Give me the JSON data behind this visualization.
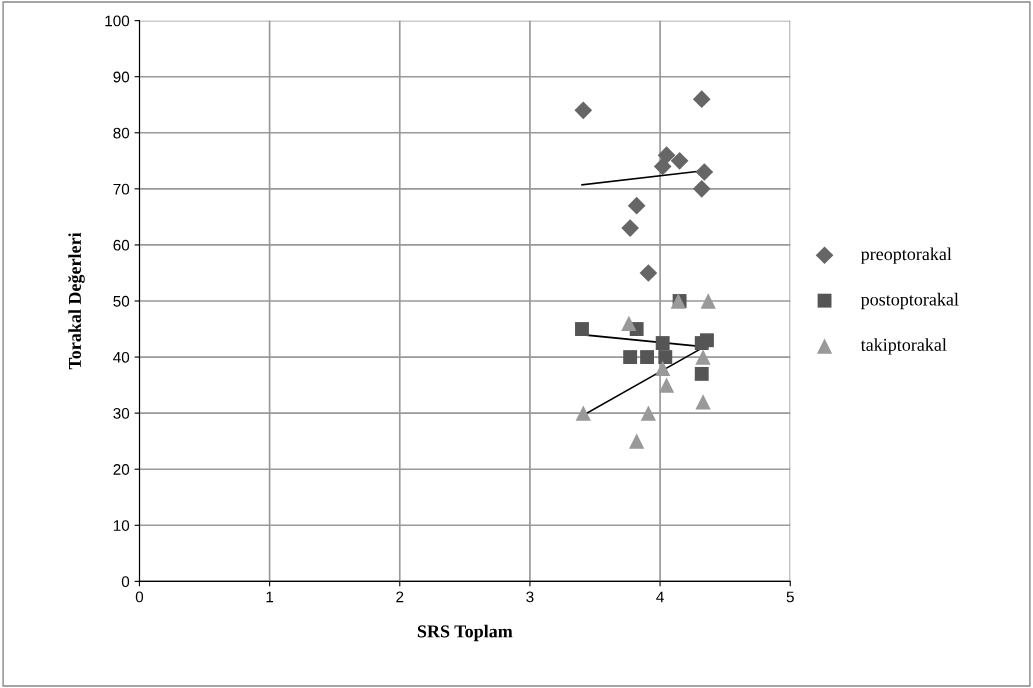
{
  "chart_data": {
    "type": "scatter",
    "xlabel": "SRS Toplam",
    "ylabel": "Torakal Değerleri",
    "xlim": [
      0,
      5
    ],
    "xticks": [
      0,
      1,
      2,
      3,
      4,
      5
    ],
    "ylim": [
      0,
      100
    ],
    "yticks": [
      0,
      10,
      20,
      30,
      40,
      50,
      60,
      70,
      80,
      90,
      100
    ],
    "grid": true,
    "legend": "right",
    "series": [
      {
        "name": "preoptorakal",
        "color": "#666666",
        "marker": "diamond",
        "x": [
          3.41,
          4.32,
          4.05,
          4.02,
          4.15,
          4.34,
          4.32,
          3.82,
          3.77,
          3.91
        ],
        "values": [
          84,
          86,
          76,
          74,
          75,
          73,
          70,
          67,
          63,
          55
        ]
      },
      {
        "name": "postoptorakal",
        "color": "#555555",
        "marker": "square",
        "x": [
          4.15,
          3.4,
          3.82,
          4.02,
          4.36,
          4.32,
          3.77,
          3.9,
          4.04,
          4.32
        ],
        "values": [
          50,
          45,
          45,
          42.5,
          43,
          42.5,
          40,
          40,
          40,
          37
        ]
      },
      {
        "name": "takiptorakal",
        "color": "#999999",
        "marker": "triangle",
        "x": [
          4.14,
          4.37,
          3.76,
          4.33,
          4.02,
          4.05,
          4.33,
          3.41,
          3.91,
          3.82
        ],
        "values": [
          50,
          50,
          46,
          40,
          38,
          35,
          32,
          30,
          30,
          25
        ]
      },
      {
        "type": "line",
        "color": "#000000",
        "marker": "none",
        "x": [
          3.4,
          4.36
        ],
        "values": [
          70.7,
          73.3
        ]
      },
      {
        "type": "line",
        "color": "#000000",
        "marker": "none",
        "x": [
          3.4,
          4.36
        ],
        "values": [
          44,
          41.8
        ]
      },
      {
        "type": "line",
        "color": "#000000",
        "marker": "none",
        "x": [
          3.4,
          4.36
        ],
        "values": [
          29.5,
          42.1
        ]
      }
    ]
  }
}
